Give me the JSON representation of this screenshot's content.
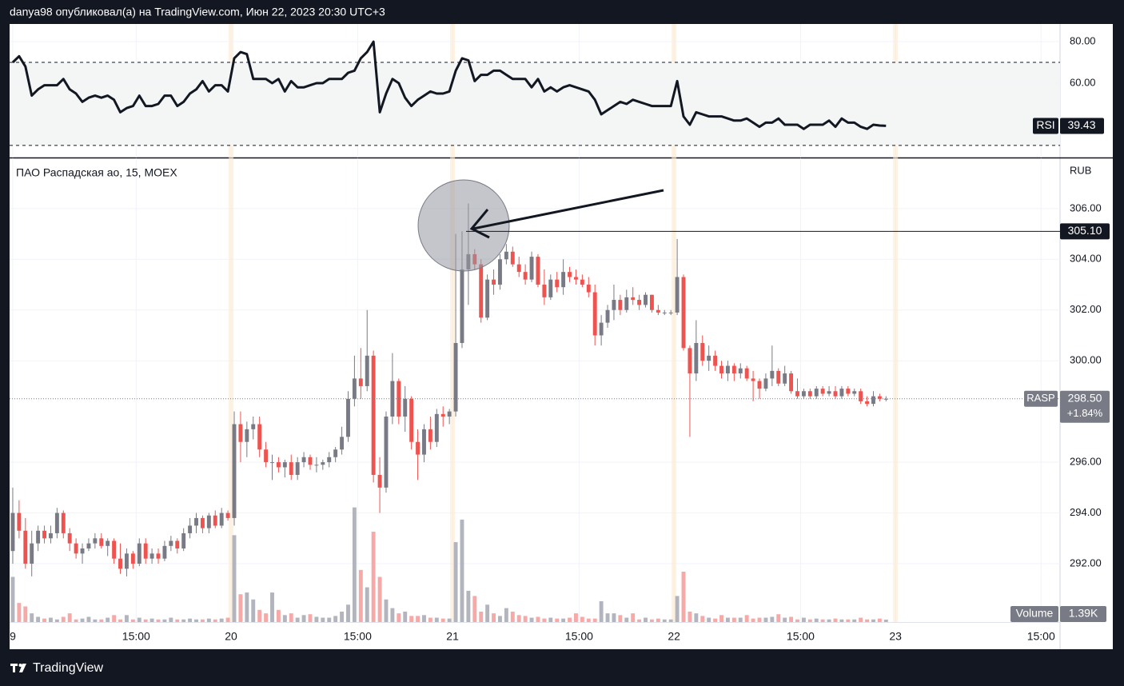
{
  "header": "danya98 опубликовал(а) на TradingView.com, Июн 22, 2023 20:30 UTC+3",
  "footer": "TradingView",
  "chart_data": {
    "type": "candlestick",
    "title": "ПАО Распадская ао, 15, MOEX",
    "currency": "RUB",
    "symbol": "RASP",
    "last_label": "298.50",
    "change": "+1.84%",
    "up_color": "#787b86",
    "down_color": "#ef5350",
    "volume_up_color": "#b2b5be",
    "volume_down_color": "#f7a9a7",
    "ylim": [
      289.7,
      307.98
    ],
    "yticks": [
      {
        "value": 306,
        "label": "306.00"
      },
      {
        "value": 304,
        "label": "304.00"
      },
      {
        "value": 302,
        "label": "302.00"
      },
      {
        "value": 300,
        "label": "300.00"
      },
      {
        "value": 296,
        "label": "296.00"
      },
      {
        "value": 294,
        "label": "294.00"
      },
      {
        "value": 292,
        "label": "292.00"
      }
    ],
    "xlim": [
      -0.5,
      165.5
    ],
    "xticks": [
      {
        "value": 0,
        "label": "9"
      },
      {
        "value": 19.5,
        "label": "15:00"
      },
      {
        "value": 34.5,
        "label": "20"
      },
      {
        "value": 54.5,
        "label": "15:00"
      },
      {
        "value": 69.5,
        "label": "21"
      },
      {
        "value": 89.5,
        "label": "15:00"
      },
      {
        "value": 104.5,
        "label": "22"
      },
      {
        "value": 124.5,
        "label": "15:00"
      },
      {
        "value": 139.5,
        "label": "23"
      },
      {
        "value": 162.5,
        "label": "15:00"
      }
    ],
    "grid": true,
    "annotation": {
      "price": 305.1,
      "label": "305.10"
    },
    "ohlc": [
      [
        292.5,
        295.0,
        292.0,
        294.0
      ],
      [
        294.0,
        294.5,
        293.0,
        293.3
      ],
      [
        293.3,
        293.8,
        291.8,
        292.0
      ],
      [
        292.0,
        293.3,
        291.5,
        292.8
      ],
      [
        292.8,
        293.5,
        292.5,
        293.3
      ],
      [
        293.3,
        293.5,
        292.8,
        293.0
      ],
      [
        293.0,
        293.5,
        292.8,
        293.2
      ],
      [
        293.2,
        294.2,
        293.0,
        294.0
      ],
      [
        294.0,
        294.1,
        293.0,
        293.2
      ],
      [
        293.2,
        293.4,
        292.5,
        292.8
      ],
      [
        292.8,
        293.0,
        292.2,
        292.4
      ],
      [
        292.4,
        292.8,
        292.0,
        292.6
      ],
      [
        292.6,
        293.0,
        292.5,
        292.8
      ],
      [
        292.8,
        293.2,
        292.6,
        293.0
      ],
      [
        293.0,
        293.2,
        292.6,
        292.7
      ],
      [
        292.7,
        293.0,
        292.3,
        292.9
      ],
      [
        292.9,
        293.0,
        292.0,
        292.2
      ],
      [
        292.2,
        292.8,
        291.6,
        291.8
      ],
      [
        291.8,
        292.6,
        291.5,
        292.4
      ],
      [
        292.4,
        292.5,
        291.8,
        292.0
      ],
      [
        292.0,
        293.0,
        291.9,
        292.8
      ],
      [
        292.8,
        293.0,
        292.0,
        292.2
      ],
      [
        292.2,
        292.6,
        292.0,
        292.4
      ],
      [
        292.4,
        292.6,
        292.0,
        292.2
      ],
      [
        292.2,
        292.9,
        292.1,
        292.7
      ],
      [
        292.7,
        293.1,
        292.5,
        292.9
      ],
      [
        292.9,
        293.0,
        292.4,
        292.6
      ],
      [
        292.6,
        293.4,
        292.5,
        293.2
      ],
      [
        293.2,
        293.8,
        293.0,
        293.5
      ],
      [
        293.5,
        294.0,
        293.2,
        293.8
      ],
      [
        293.8,
        293.9,
        293.2,
        293.4
      ],
      [
        293.4,
        294.0,
        293.2,
        293.9
      ],
      [
        293.9,
        294.1,
        293.4,
        293.5
      ],
      [
        293.5,
        294.2,
        293.4,
        294.0
      ],
      [
        294.0,
        294.1,
        293.7,
        293.8
      ],
      [
        293.8,
        298.0,
        293.5,
        297.5
      ],
      [
        297.5,
        298.0,
        296.0,
        296.8
      ],
      [
        296.8,
        297.6,
        296.2,
        297.3
      ],
      [
        297.3,
        297.8,
        296.9,
        297.5
      ],
      [
        297.5,
        297.8,
        296.2,
        296.5
      ],
      [
        296.5,
        296.8,
        295.8,
        296.0
      ],
      [
        296.0,
        296.3,
        295.3,
        296.0
      ],
      [
        296.0,
        296.2,
        295.6,
        295.8
      ],
      [
        295.8,
        296.1,
        295.4,
        296.0
      ],
      [
        296.0,
        296.3,
        295.3,
        295.5
      ],
      [
        295.5,
        296.2,
        295.3,
        296.0
      ],
      [
        296.0,
        296.4,
        295.8,
        296.2
      ],
      [
        296.2,
        296.3,
        295.7,
        295.9
      ],
      [
        295.9,
        296.2,
        295.6,
        295.9
      ],
      [
        295.9,
        296.1,
        295.7,
        296.0
      ],
      [
        296.0,
        296.4,
        295.8,
        296.2
      ],
      [
        296.2,
        296.6,
        296.0,
        296.5
      ],
      [
        296.5,
        297.4,
        296.3,
        297.0
      ],
      [
        297.0,
        298.8,
        296.8,
        298.5
      ],
      [
        298.5,
        300.2,
        298.2,
        299.3
      ],
      [
        299.3,
        300.5,
        298.5,
        299.0
      ],
      [
        299.0,
        302.0,
        298.8,
        300.2
      ],
      [
        300.2,
        300.4,
        295.2,
        295.5
      ],
      [
        295.5,
        296.2,
        294.0,
        295.0
      ],
      [
        295.0,
        298.0,
        294.8,
        297.8
      ],
      [
        297.8,
        300.3,
        297.5,
        299.2
      ],
      [
        299.2,
        299.3,
        297.5,
        297.8
      ],
      [
        297.8,
        299.0,
        297.2,
        298.5
      ],
      [
        298.5,
        298.6,
        296.5,
        296.8
      ],
      [
        296.8,
        297.3,
        295.3,
        296.3
      ],
      [
        296.3,
        297.5,
        296.0,
        297.3
      ],
      [
        297.3,
        297.8,
        296.5,
        296.8
      ],
      [
        296.8,
        298.1,
        296.6,
        297.9
      ],
      [
        297.9,
        298.2,
        297.4,
        297.8
      ],
      [
        297.8,
        298.1,
        297.5,
        298.0
      ],
      [
        298.0,
        305.0,
        297.8,
        300.7
      ],
      [
        300.7,
        305.1,
        300.5,
        303.6
      ],
      [
        303.6,
        306.2,
        302.2,
        304.2
      ],
      [
        304.2,
        304.4,
        303.6,
        303.8
      ],
      [
        303.8,
        304.0,
        301.5,
        301.7
      ],
      [
        301.7,
        303.4,
        301.6,
        303.2
      ],
      [
        303.2,
        303.6,
        302.6,
        303.0
      ],
      [
        303.0,
        304.2,
        302.8,
        304.0
      ],
      [
        304.0,
        304.6,
        303.8,
        304.3
      ],
      [
        304.3,
        304.5,
        303.7,
        303.8
      ],
      [
        303.8,
        304.1,
        303.3,
        303.5
      ],
      [
        303.5,
        303.8,
        303.0,
        303.2
      ],
      [
        303.2,
        304.3,
        303.1,
        304.1
      ],
      [
        304.1,
        304.2,
        302.9,
        303.0
      ],
      [
        303.0,
        303.6,
        302.2,
        302.5
      ],
      [
        302.5,
        303.4,
        302.4,
        303.2
      ],
      [
        303.2,
        303.5,
        302.7,
        302.9
      ],
      [
        302.9,
        304.0,
        302.6,
        303.5
      ],
      [
        303.5,
        303.7,
        303.1,
        303.3
      ],
      [
        303.3,
        303.6,
        303.0,
        303.2
      ],
      [
        303.2,
        303.4,
        302.9,
        303.0
      ],
      [
        303.0,
        303.3,
        302.5,
        302.7
      ],
      [
        302.7,
        303.0,
        300.6,
        301.0
      ],
      [
        301.0,
        301.8,
        300.6,
        301.5
      ],
      [
        301.5,
        302.2,
        301.3,
        302.0
      ],
      [
        302.0,
        303.0,
        301.6,
        302.4
      ],
      [
        302.4,
        302.6,
        301.8,
        302.0
      ],
      [
        302.0,
        302.8,
        301.9,
        302.5
      ],
      [
        302.5,
        302.9,
        302.2,
        302.4
      ],
      [
        302.4,
        302.6,
        302.0,
        302.2
      ],
      [
        302.2,
        302.7,
        302.1,
        302.6
      ],
      [
        302.6,
        302.6,
        301.9,
        302.0
      ],
      [
        302.0,
        302.2,
        301.8,
        301.9
      ],
      [
        301.9,
        302.0,
        301.8,
        301.9
      ],
      [
        301.9,
        302.0,
        301.8,
        301.9
      ],
      [
        301.9,
        304.8,
        301.8,
        303.3
      ],
      [
        303.3,
        303.4,
        300.4,
        300.5
      ],
      [
        300.5,
        300.6,
        297.0,
        299.5
      ],
      [
        299.5,
        301.6,
        299.2,
        300.7
      ],
      [
        300.7,
        301.0,
        299.8,
        300.0
      ],
      [
        300.0,
        300.6,
        299.6,
        300.2
      ],
      [
        300.2,
        300.4,
        299.6,
        299.8
      ],
      [
        299.8,
        300.0,
        299.3,
        299.5
      ],
      [
        299.5,
        300.0,
        299.2,
        299.8
      ],
      [
        299.8,
        299.9,
        299.2,
        299.5
      ],
      [
        299.5,
        299.9,
        299.3,
        299.7
      ],
      [
        299.7,
        299.8,
        299.2,
        299.3
      ],
      [
        299.3,
        299.6,
        298.4,
        299.2
      ],
      [
        299.2,
        299.3,
        298.5,
        298.9
      ],
      [
        298.9,
        299.5,
        298.8,
        299.3
      ],
      [
        299.3,
        300.6,
        299.0,
        299.6
      ],
      [
        299.6,
        299.7,
        299.0,
        299.1
      ],
      [
        299.1,
        299.8,
        299.0,
        299.5
      ],
      [
        299.5,
        299.6,
        298.7,
        298.8
      ],
      [
        298.8,
        299.3,
        298.5,
        298.6
      ],
      [
        298.6,
        298.9,
        298.5,
        298.8
      ],
      [
        298.8,
        298.9,
        298.5,
        298.6
      ],
      [
        298.6,
        299.0,
        298.5,
        298.9
      ],
      [
        298.9,
        299.0,
        298.6,
        298.7
      ],
      [
        298.7,
        299.0,
        298.6,
        298.8
      ],
      [
        298.8,
        299.0,
        298.5,
        298.6
      ],
      [
        298.6,
        299.0,
        298.5,
        298.9
      ],
      [
        298.9,
        299.0,
        298.6,
        298.7
      ],
      [
        298.7,
        298.9,
        298.6,
        298.8
      ],
      [
        298.8,
        298.9,
        298.3,
        298.4
      ],
      [
        298.4,
        298.6,
        298.2,
        298.3
      ],
      [
        298.3,
        298.8,
        298.2,
        298.6
      ],
      [
        298.6,
        298.7,
        298.4,
        298.5
      ],
      [
        298.5,
        298.6,
        298.4,
        298.5
      ]
    ],
    "volume_name": "Volume",
    "volume_label": "1.39K",
    "volume_lim": [
      0,
      267000
    ],
    "volume": [
      26000,
      11000,
      9000,
      5000,
      3000,
      2000,
      2500,
      1500,
      3000,
      5000,
      1500,
      2000,
      3000,
      1500,
      1500,
      2500,
      4000,
      1500,
      4000,
      1500,
      2500,
      1500,
      2000,
      1500,
      1500,
      2500,
      1500,
      1500,
      2000,
      1500,
      1500,
      2000,
      1500,
      2000,
      2500,
      50000,
      16000,
      17000,
      13000,
      7000,
      5000,
      17000,
      7000,
      4000,
      5000,
      2500,
      4000,
      4500,
      3000,
      2500,
      2500,
      3500,
      6000,
      10000,
      66000,
      30000,
      20000,
      52000,
      26000,
      13000,
      8000,
      5000,
      6000,
      3500,
      3500,
      4000,
      2500,
      2500,
      2000,
      2000,
      46000,
      59000,
      18000,
      15000,
      6000,
      10000,
      5000,
      3500,
      8000,
      6000,
      4000,
      3500,
      2500,
      3000,
      2000,
      2500,
      2000,
      2000,
      2500,
      5000,
      3000,
      2000,
      2000,
      12000,
      5000,
      5000,
      4000,
      2500,
      5000,
      1500,
      2500,
      1500,
      2000,
      1500,
      1500,
      15000,
      29000,
      6000,
      5000,
      3500,
      2500,
      2000,
      4000,
      2500,
      2500,
      2500,
      4000,
      2000,
      2500,
      2500,
      3000,
      4500,
      2500,
      3000,
      1500,
      2500,
      1500,
      2000,
      1500,
      1500,
      2000,
      1500,
      1500,
      1500,
      2500,
      1500,
      1500,
      2000,
      1390
    ],
    "rsi": {
      "name": "RSI",
      "last_label": "39.43",
      "color": "#131722",
      "ylim": [
        24.2,
        88.5
      ],
      "yticks": [
        {
          "value": 80,
          "label": "80.00"
        },
        {
          "value": 60,
          "label": "60.00"
        }
      ],
      "bands": [
        70,
        30
      ],
      "values": [
        70,
        73,
        68,
        54,
        57,
        59,
        59,
        59,
        62,
        57,
        55,
        51,
        53,
        54,
        53,
        54,
        52,
        46,
        48,
        49,
        54,
        49,
        49,
        50,
        54,
        54,
        49,
        51,
        55,
        57,
        61,
        56,
        59,
        59,
        56,
        72,
        75,
        74,
        62,
        62,
        62,
        60,
        62,
        56,
        61,
        58,
        58,
        59,
        60,
        60,
        62,
        62,
        62,
        65,
        66,
        72,
        75,
        80,
        46,
        55,
        62,
        60,
        53,
        49,
        52,
        54,
        56,
        55,
        55,
        56,
        66,
        72,
        71,
        61,
        64,
        64,
        66,
        66,
        64,
        62,
        62,
        62,
        58,
        62,
        56,
        58,
        56,
        58,
        59,
        58,
        57,
        56,
        52,
        45,
        47,
        49,
        51,
        50,
        52,
        51,
        50,
        49,
        49,
        49,
        49,
        61,
        44,
        40,
        46,
        45,
        44,
        44,
        44,
        43,
        42,
        42,
        43,
        41,
        39,
        41,
        41,
        43,
        40,
        40,
        40,
        38,
        40,
        40,
        40,
        42,
        39,
        43,
        41,
        41,
        39,
        38,
        40,
        39.6,
        39.43
      ]
    }
  }
}
